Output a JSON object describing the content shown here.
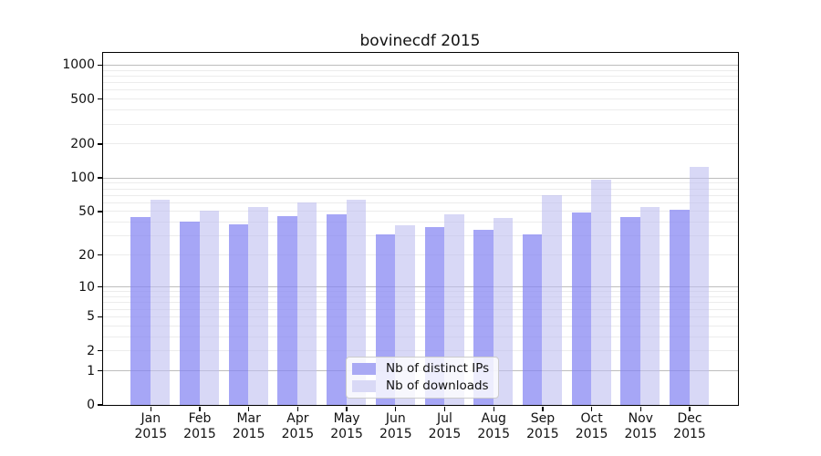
{
  "chart_data": {
    "type": "bar",
    "title": "bovinecdf 2015",
    "scale": "log1p",
    "grid": true,
    "legend_position": "lower center",
    "categories": [
      "Jan",
      "Feb",
      "Mar",
      "Apr",
      "May",
      "Jun",
      "Jul",
      "Aug",
      "Sep",
      "Oct",
      "Nov",
      "Dec"
    ],
    "x_tick_year": "2015",
    "yticks": [
      1000,
      500,
      200,
      100,
      50,
      20,
      10,
      5,
      2,
      1,
      0
    ],
    "ylim": [
      0,
      1280
    ],
    "series": [
      {
        "name": "Nb of distinct IPs",
        "color": "#a9a9f4",
        "fill": "rgba(132,132,242,0.72)",
        "values": [
          44,
          40,
          38,
          45,
          47,
          31,
          36,
          34,
          31,
          49,
          44,
          51
        ]
      },
      {
        "name": "Nb of downloads",
        "color": "#d9d9f6",
        "fill": "rgba(190,190,240,0.60)",
        "values": [
          63,
          50,
          54,
          60,
          63,
          37,
          47,
          43,
          69,
          95,
          54,
          125
        ]
      }
    ],
    "colors": {
      "grid_major": "#bdbdbd",
      "grid_minor": "#ececec",
      "axis_frame": "#000000",
      "text": "#111111"
    }
  }
}
